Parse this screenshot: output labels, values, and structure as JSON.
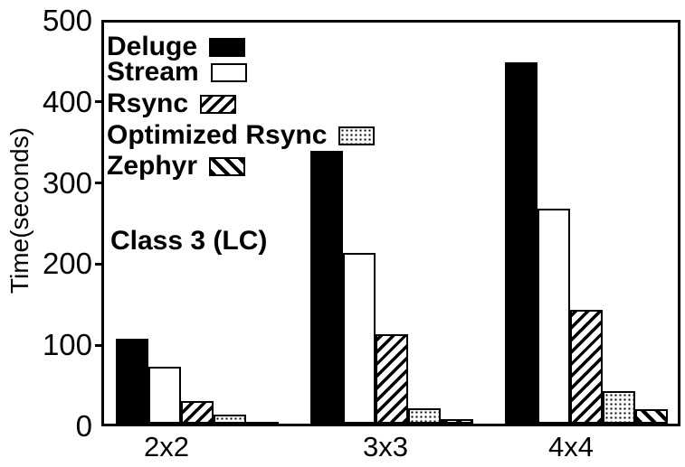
{
  "chart_data": {
    "type": "bar",
    "categories": [
      "2x2",
      "3x3",
      "4x4"
    ],
    "series": [
      {
        "name": "Deluge",
        "pattern": "solid-black",
        "values": [
          105,
          336,
          445
        ]
      },
      {
        "name": "Stream",
        "pattern": "white",
        "values": [
          70,
          211,
          265
        ]
      },
      {
        "name": "Rsync",
        "pattern": "hatch-forward",
        "values": [
          28,
          110,
          140
        ]
      },
      {
        "name": "Optimized Rsync",
        "pattern": "dots",
        "values": [
          11,
          19,
          40
        ]
      },
      {
        "name": "Zephyr",
        "pattern": "hatch-back",
        "values": [
          2,
          6,
          18
        ]
      }
    ],
    "title": "",
    "xlabel": "",
    "ylabel": "Time(seconds)",
    "ylim": [
      0,
      500
    ],
    "yticks": [
      0,
      100,
      200,
      300,
      400,
      500
    ],
    "annotation": "Class 3 (LC)",
    "legend_position": "top-left",
    "grid": "off",
    "colors": {
      "foreground": "#000000",
      "background": "#ffffff"
    }
  }
}
